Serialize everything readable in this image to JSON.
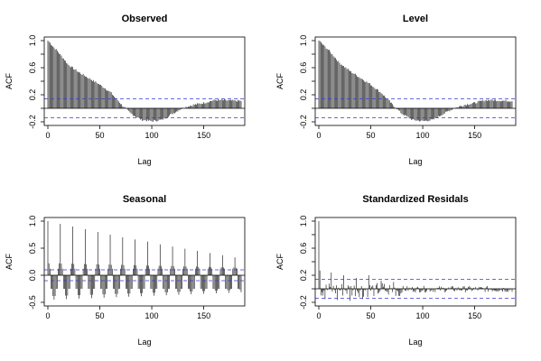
{
  "chart_data": [
    {
      "type": "bar",
      "title": "Observed",
      "xlabel": "Lag",
      "ylabel": "ACF",
      "xlim": [
        0,
        186
      ],
      "ylim": [
        -0.2,
        1.0
      ],
      "xticks": [
        0,
        50,
        100,
        150
      ],
      "yticks": [
        -0.2,
        0.2,
        0.6,
        1.0
      ],
      "yticks_minor": [
        0.0,
        0.4,
        0.8
      ],
      "confidence_band": [
        -0.14,
        0.14
      ],
      "lags": [
        0,
        10,
        20,
        30,
        40,
        50,
        60,
        70,
        80,
        90,
        100,
        110,
        120,
        130,
        140,
        150,
        160,
        170,
        180,
        186
      ],
      "acf": [
        1.0,
        0.83,
        0.64,
        0.53,
        0.44,
        0.35,
        0.24,
        0.07,
        -0.08,
        -0.17,
        -0.19,
        -0.17,
        -0.08,
        0.01,
        0.05,
        0.08,
        0.12,
        0.12,
        0.11,
        0.11
      ]
    },
    {
      "type": "bar",
      "title": "Level",
      "xlabel": "Lag",
      "ylabel": "ACF",
      "xlim": [
        0,
        186
      ],
      "ylim": [
        -0.2,
        1.0
      ],
      "xticks": [
        0,
        50,
        100,
        150
      ],
      "yticks": [
        -0.2,
        0.2,
        0.6,
        1.0
      ],
      "yticks_minor": [
        0.0,
        0.4,
        0.8
      ],
      "confidence_band": [
        -0.14,
        0.14
      ],
      "lags": [
        0,
        10,
        20,
        30,
        40,
        50,
        60,
        70,
        80,
        90,
        100,
        110,
        120,
        130,
        140,
        150,
        160,
        170,
        180,
        186
      ],
      "acf": [
        1.0,
        0.85,
        0.67,
        0.55,
        0.45,
        0.35,
        0.23,
        0.07,
        -0.08,
        -0.17,
        -0.19,
        -0.17,
        -0.08,
        0.0,
        0.05,
        0.08,
        0.12,
        0.12,
        0.11,
        0.11
      ]
    },
    {
      "type": "bar",
      "title": "Seasonal",
      "xlabel": "Lag",
      "ylabel": "ACF",
      "xlim": [
        0,
        186
      ],
      "ylim": [
        -0.5,
        1.0
      ],
      "xticks": [
        0,
        50,
        100,
        150
      ],
      "yticks": [
        -0.5,
        0.0,
        0.5,
        1.0
      ],
      "confidence_band": [
        -0.1,
        0.1
      ],
      "period": 12,
      "seasonal_lags": [
        0,
        12,
        24,
        36,
        48,
        60,
        72,
        84,
        96,
        108,
        120,
        132,
        144,
        156,
        168,
        180
      ],
      "seasonal_peaks": [
        1.0,
        0.95,
        0.9,
        0.85,
        0.8,
        0.75,
        0.7,
        0.66,
        0.62,
        0.57,
        0.53,
        0.49,
        0.45,
        0.41,
        0.37,
        0.33
      ],
      "near_peak_acf": 0.22,
      "trough_acf": -0.45
    },
    {
      "type": "bar",
      "title": "Standardized Residals",
      "xlabel": "Lag",
      "ylabel": "ACF",
      "xlim": [
        0,
        186
      ],
      "ylim": [
        -0.2,
        1.0
      ],
      "xticks": [
        0,
        50,
        100,
        150
      ],
      "yticks": [
        -0.2,
        0.2,
        0.6,
        1.0
      ],
      "yticks_minor": [
        0.0,
        0.4,
        0.8
      ],
      "confidence_band": [
        -0.14,
        0.14
      ],
      "spike_lags": [
        0,
        1,
        12,
        24,
        36,
        48,
        60,
        72
      ],
      "spike_acf": [
        1.0,
        0.27,
        0.24,
        0.2,
        0.16,
        0.2,
        0.12,
        0.1
      ],
      "noise_scale": 0.08
    }
  ]
}
